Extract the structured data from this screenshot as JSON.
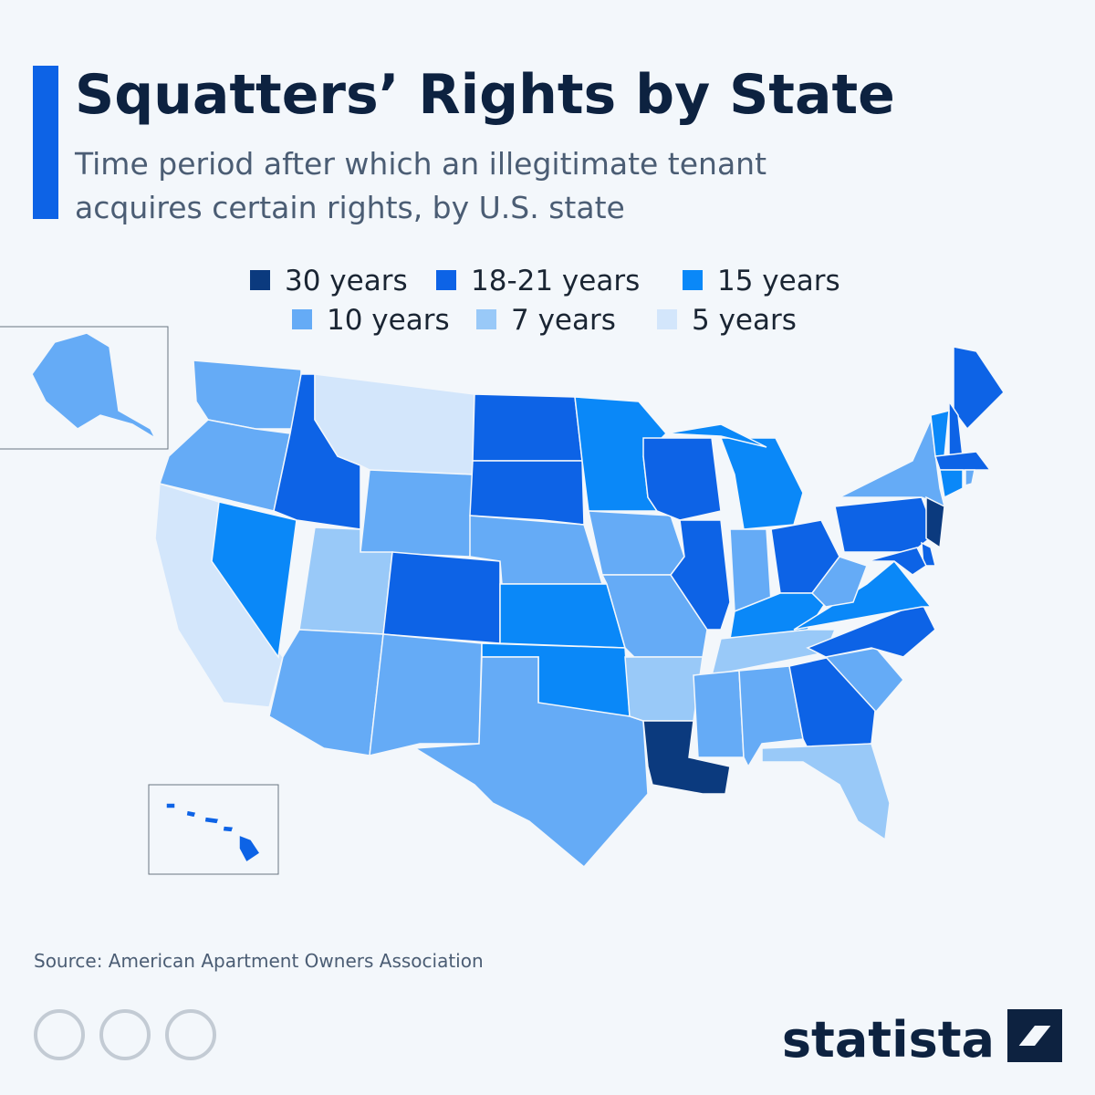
{
  "header": {
    "title": "Squatters’ Rights by State",
    "subtitle_lines": [
      "Time period after which an illegitimate tenant",
      "acquires certain rights, by U.S. state"
    ]
  },
  "legend": [
    {
      "label": "30 years",
      "color": "#0b3a7e"
    },
    {
      "label": "18-21 years",
      "color": "#0d63e6"
    },
    {
      "label": "15 years",
      "color": "#0a88f8"
    },
    {
      "label": "10 years",
      "color": "#65abf6"
    },
    {
      "label": "7 years",
      "color": "#99c9f8"
    },
    {
      "label": "5 years",
      "color": "#d3e6fb"
    }
  ],
  "footer": {
    "source": "Source: American Apartment Owners Association",
    "brand": "statista"
  }
}
